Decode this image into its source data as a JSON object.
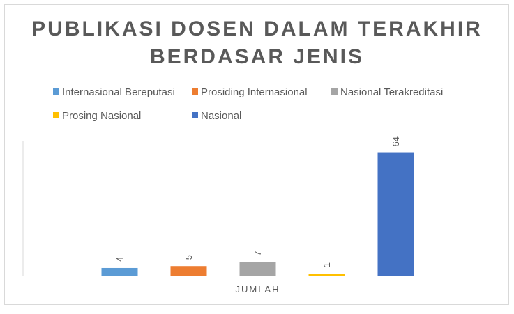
{
  "chart_data": {
    "type": "bar",
    "title": "PUBLIKASI DOSEN DALAM TERAKHIR BERDASAR JENIS",
    "title_lines": [
      "PUBLIKASI DOSEN DALAM TERAKHIR",
      "BERDASAR JENIS"
    ],
    "categories": [
      "JUMLAH"
    ],
    "series": [
      {
        "name": "Internasional Bereputasi",
        "values": [
          4
        ],
        "color": "#5b9bd5"
      },
      {
        "name": "Prosiding Internasional",
        "values": [
          5
        ],
        "color": "#ed7d31"
      },
      {
        "name": "Nasional Terakreditasi",
        "values": [
          7
        ],
        "color": "#a5a5a5"
      },
      {
        "name": "Prosing Nasional",
        "values": [
          1
        ],
        "color": "#ffc000"
      },
      {
        "name": "Nasional",
        "values": [
          64
        ],
        "color": "#4472c4"
      }
    ],
    "legend_position": "top",
    "grid": false,
    "ylim": [
      0,
      70
    ]
  }
}
